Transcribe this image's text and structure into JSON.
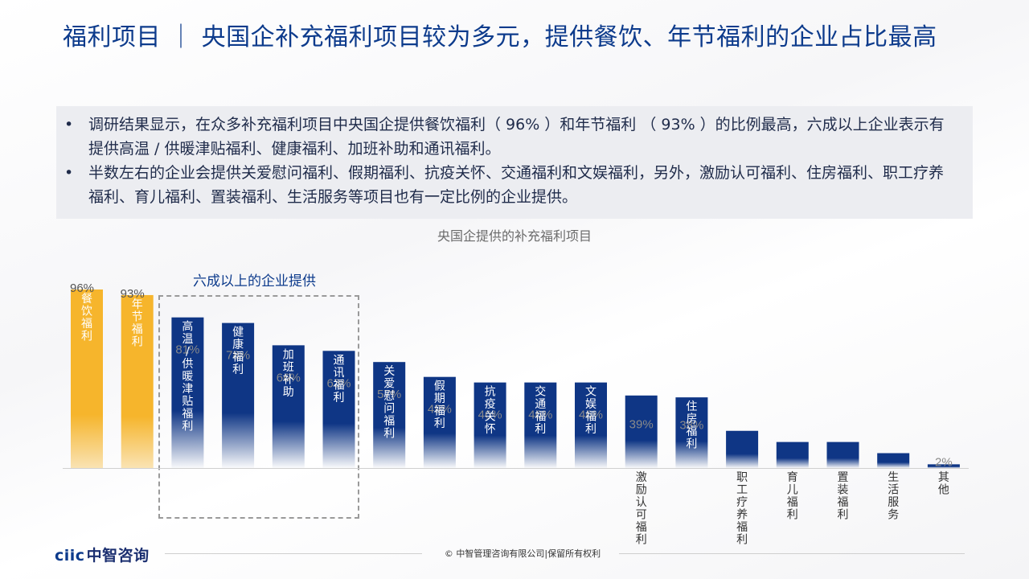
{
  "title": "福利项目 ｜ 央国企补充福利项目较为多元，提供餐饮、年节福利的企业占比最高",
  "summary": [
    "调研结果显示，在众多补充福利项目中央国企提供餐饮福利（ 96% ）和年节福利 （ 93% ）的比例最高，六成以上企业表示有提供高温 / 供暖津贴福利、健康福利、加班补助和通讯福利。",
    "半数左右的企业会提供关爱慰问福利、假期福利、抗疫关怀、交通福利和文娱福利，另外，激励认可福利、住房福利、职工疗养福利、育儿福利、置装福利、生活服务等项目也有一定比例的企业提供。"
  ],
  "bullet_char": "•",
  "group_label": "六成以上的企业提供",
  "colors": {
    "title": "#0d3b8c",
    "bar_gold": "#f6b52c",
    "bar_navy": "#0f3685",
    "label_white": "#ffffff",
    "pct_gray": "#8a8a8a"
  },
  "chart_data": {
    "type": "bar",
    "title": "央国企提供的补充福利项目",
    "categories": [
      "餐饮福利",
      "年节福利",
      "高温/供暖津贴福利",
      "健康福利",
      "加班补助",
      "通讯福利",
      "关爱慰问福利",
      "假期福利",
      "抗疫关怀",
      "交通福利",
      "文娱福利",
      "激励认可福利",
      "住房福利",
      "职工疗养福利",
      "育儿福利",
      "置装福利",
      "生活服务",
      "其他"
    ],
    "values": [
      96,
      93,
      81,
      78,
      66,
      63,
      57,
      49,
      46,
      46,
      46,
      39,
      38,
      20,
      14,
      14,
      8,
      2
    ],
    "value_labels": [
      "96%",
      "93%",
      "81%",
      "78%",
      "66%",
      "63%",
      "57%",
      "49%",
      "46%",
      "46%",
      "46%",
      "39%",
      "38%",
      "",
      "",
      "",
      "",
      "2%"
    ],
    "highlight": [
      true,
      true,
      false,
      false,
      false,
      false,
      false,
      false,
      false,
      false,
      false,
      false,
      false,
      false,
      false,
      false,
      false,
      false
    ],
    "ylim": [
      0,
      100
    ],
    "grid": false,
    "legend": "none"
  },
  "footer": {
    "logo_latin": "ciic",
    "logo_cn": "中智咨询",
    "copyright": "© 中智管理咨询有限公司|保留所有权利"
  }
}
